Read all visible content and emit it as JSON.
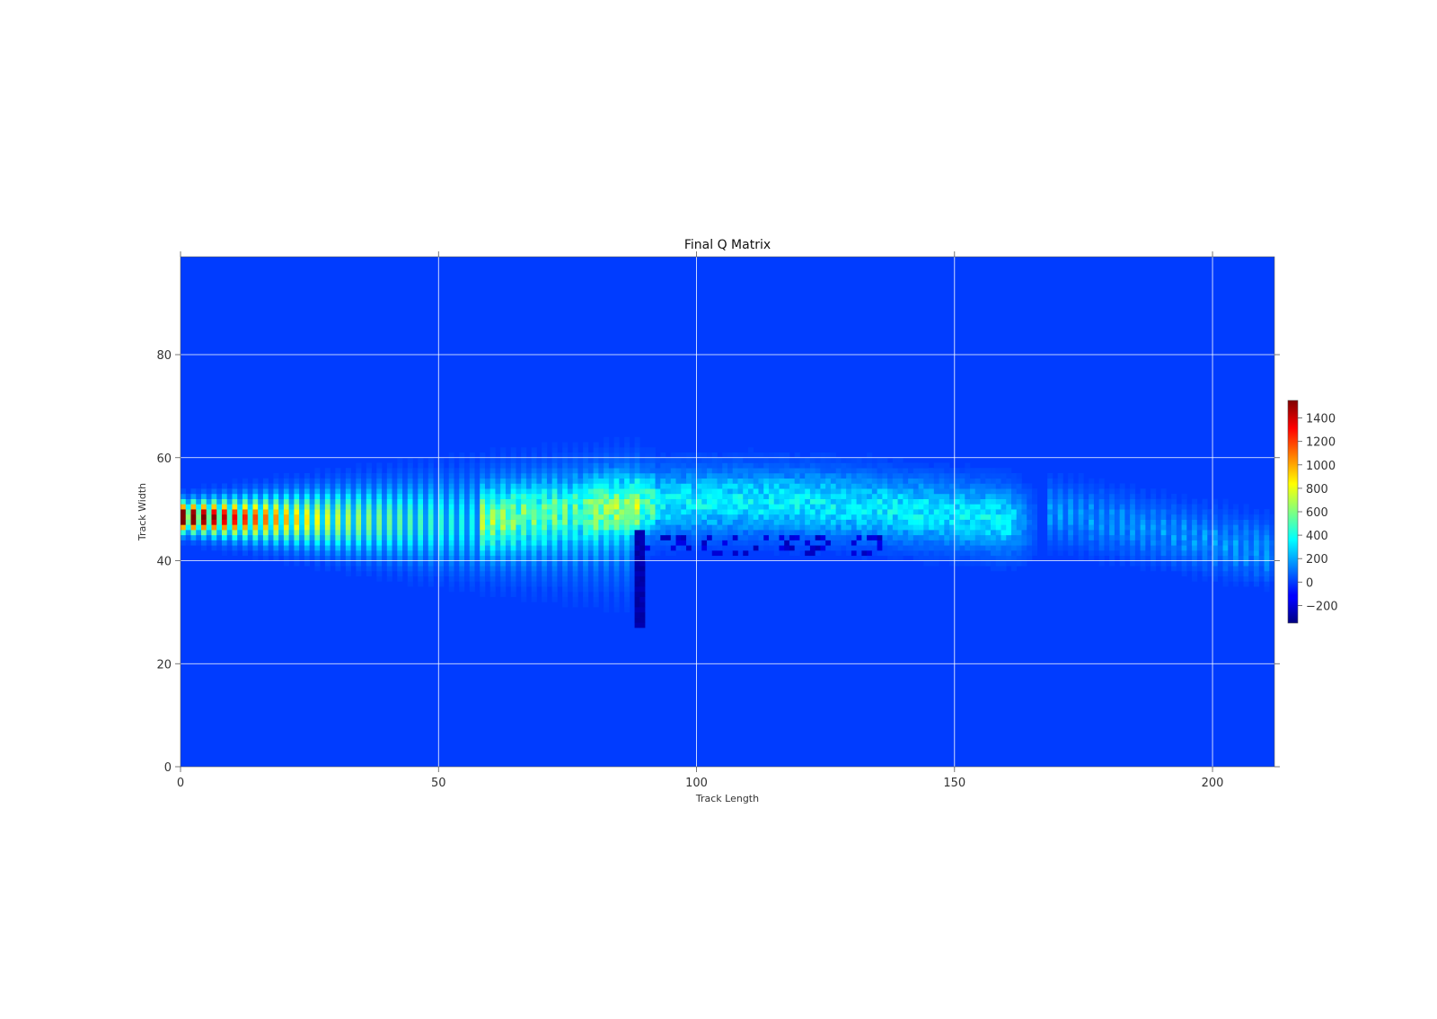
{
  "chart_data": {
    "type": "heatmap",
    "title": "Final Q Matrix",
    "xlabel": "Track Length",
    "ylabel": "Track Width",
    "xlim": [
      0,
      212
    ],
    "ylim": [
      0,
      99
    ],
    "x_ticks": [
      0,
      50,
      100,
      150,
      200
    ],
    "x_tick_labels": [
      "0",
      "50",
      "100",
      "150",
      "200"
    ],
    "y_ticks": [
      0,
      20,
      40,
      60,
      80
    ],
    "y_tick_labels": [
      "0",
      "20",
      "40",
      "60",
      "80"
    ],
    "grid": true,
    "colormap": "jet",
    "background_value": 0,
    "colorbar": {
      "range": [
        -350,
        1550
      ],
      "ticks": [
        1400,
        1200,
        1000,
        800,
        600,
        400,
        200,
        0,
        -200
      ],
      "tick_labels": [
        "1400",
        "1200",
        "1000",
        "800",
        "600",
        "400",
        "200",
        "0",
        "−200"
      ]
    },
    "regions": [
      {
        "description": "striped high-value band near start",
        "x": [
          0,
          88
        ],
        "y": [
          38,
          52
        ],
        "peak_value": 1500
      },
      {
        "description": "diffuse mid band",
        "x": [
          62,
          165
        ],
        "y": [
          42,
          60
        ],
        "peak_value": 500
      },
      {
        "description": "faint striped band",
        "x": [
          168,
          210
        ],
        "y": [
          36,
          56
        ],
        "peak_value": 250
      },
      {
        "description": "negative vertical streak",
        "x": [
          88,
          89
        ],
        "y": [
          27,
          45
        ],
        "peak_value": -300
      }
    ]
  },
  "colors": {
    "grid": "#ffffff",
    "axis": "#555555",
    "background": "#ffffff"
  }
}
